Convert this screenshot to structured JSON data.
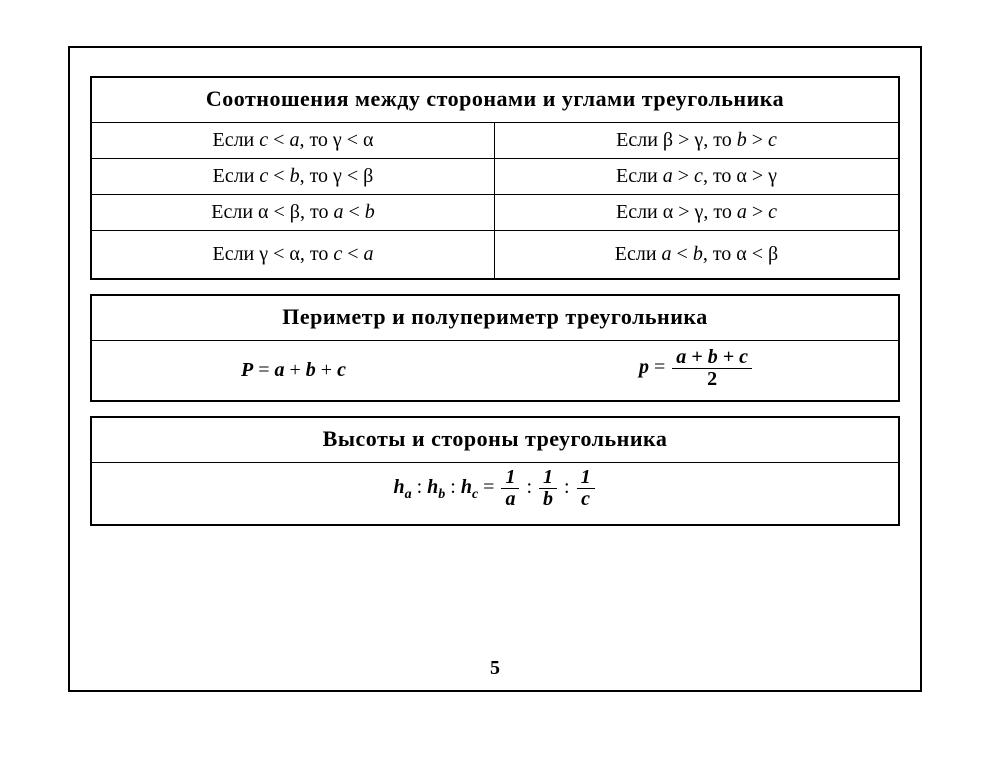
{
  "page_number": "5",
  "block1": {
    "title": "Соотношения между сторонами и углами треугольника",
    "rows": [
      {
        "left": "Если <i class='v'>c</i> < <i class='v'>a</i>, то  γ  <  α",
        "right": "Если  β > γ, то <i class='v'>b</i> > <i class='v'>c</i>"
      },
      {
        "left": "Если  <i class='v'>c</i> < <i class='v'>b</i>, то  γ  <  β",
        "right": "Если <i class='v'>a</i> > <i class='v'>c</i>, то α > γ"
      },
      {
        "left": "Если  α < β, то <i class='v'>a</i> < <i class='v'>b</i>",
        "right": "Если α > γ, то <i class='v'>a</i> > <i class='v'>c</i>"
      },
      {
        "left": "Если γ < α, то <i class='v'>c</i> < <i class='v'>a</i>",
        "right": "Если <i class='v'>a</i> < <i class='v'>b</i>, то α < β",
        "tall": true
      }
    ]
  },
  "block2": {
    "title": "Периметр и полупериметр треугольника",
    "left_formula": "<i class='v'><b>P</b></i> = <i class='v'><b>a</b></i> + <i class='v'><b>b</b></i> + <i class='v'><b>c</b></i>",
    "right_formula": "<i class='v'><b>p</b></i> = <span class='frac'><span class='num'>a + b + c</span><span class='den'>2</span></span>"
  },
  "block3": {
    "title": "Высоты и стороны треугольника",
    "formula": "<i class='v'><b>h<sub>a</sub></b></i> : <i class='v'><b>h<sub>b</sub></b></i> : <i class='v'><b>h<sub>c</sub></b></i> = <span class='frac'><span class='num'>1</span><span class='den'><i>a</i></span></span> : <span class='frac'><span class='num'>1</span><span class='den'><i>b</i></span></span> : <span class='frac'><span class='num'>1</span><span class='den'><i>c</i></span></span>"
  }
}
